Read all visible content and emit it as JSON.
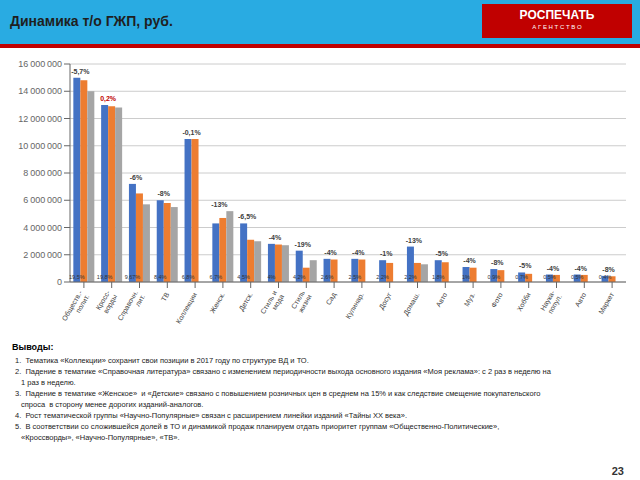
{
  "chart_data": {
    "type": "bar",
    "title": "Динамика т/о ГЖП, руб.",
    "categories": [
      "Обществ.-\nполит.",
      "Кросс-\nворды",
      "Справочн.\nлит.",
      "ТВ",
      "Коллекции",
      "Женск.",
      "Детск.",
      "Стиль и\nмода",
      "Стиль\nжизни",
      "Сад",
      "Кулинар.",
      "Досуг",
      "Домаш.",
      "Авто",
      "Муз.",
      "Фото",
      "Хобби",
      "Наука-\nпопул.",
      "Авто",
      "Маркет"
    ],
    "series": [
      {
        "color": "#4472C4",
        "values": [
          15000000,
          13000000,
          7200000,
          6000000,
          10500000,
          4300000,
          4300000,
          2800000,
          2300000,
          1700000,
          1700000,
          1600000,
          2600000,
          1600000,
          1100000,
          950000,
          700000,
          550000,
          550000,
          450000
        ]
      },
      {
        "color": "#ED7D31",
        "values": [
          14800000,
          12900000,
          6500000,
          5800000,
          10490000,
          4700000,
          3100000,
          2750000,
          1050000,
          1650000,
          1650000,
          1400000,
          1400000,
          1450000,
          1050000,
          870000,
          600000,
          520000,
          520000,
          420000
        ]
      },
      {
        "color": "#A5A5A5",
        "values": [
          14000000,
          12800000,
          5700000,
          5500000,
          null,
          5200000,
          3000000,
          2700000,
          1600000,
          null,
          null,
          null,
          1300000,
          null,
          null,
          null,
          null,
          null,
          null,
          null
        ]
      }
    ],
    "ylim": [
      0,
      16000000
    ],
    "yticks": [
      0,
      {
        "value": 2000000,
        "label": "2 000 000"
      },
      {
        "value": 4000000,
        "label": "4 000 000"
      },
      {
        "value": 6000000,
        "label": "6 000 000"
      },
      {
        "value": 8000000,
        "label": "8 000 000"
      },
      {
        "value": 10000000,
        "label": "10 000 000"
      },
      {
        "value": 12000000,
        "label": "12 000 000"
      },
      {
        "value": 14000000,
        "label": "14 000 000"
      },
      {
        "value": 16000000,
        "label": "16 000 000"
      }
    ],
    "grid": true,
    "annotations": {
      "logo": "РОСПЕЧАТЬ",
      "logo_subtitle": "А Г Е Н Т С Т В О",
      "pct_labels": [
        "-5,7%",
        "0,2%",
        "-6%",
        "-8%",
        "-0,1%",
        "-13%",
        "-6,5%",
        "-4%",
        "-19%",
        "-4%",
        "-4%",
        "-1%",
        "-13%",
        "-5%",
        "-4%",
        "-8%",
        "-5%",
        "-4%",
        "-4%",
        "-8%"
      ],
      "pct_label_colors": [
        "#404040",
        "#c00000",
        "#404040",
        "#404040",
        "#404040",
        "#404040",
        "#404040",
        "#404040",
        "#404040",
        "#404040",
        "#404040",
        "#404040",
        "#404040",
        "#404040",
        "#404040",
        "#404040",
        "#404040",
        "#404040",
        "#404040",
        "#404040"
      ],
      "share_labels": [
        "19,5%",
        "19,8%",
        "9,67%",
        "8,4%",
        "6,8%",
        "6,7%",
        "4,5%",
        "4%",
        "4,2%",
        "2,6%",
        "2,5%",
        "2,2%",
        "2,2%",
        "1,8%",
        "1%",
        "0,9%",
        "0,7%",
        "0,5%",
        "0,5%",
        "0,4%"
      ],
      "notes_title": "Выводы:",
      "notes": [
        "1.  Тематика «Коллекции» сохранит свои позиции в 2017 году по структуре ВД и ТО.",
        "2.  Падение в тематике «Справочная литература» связано с изменением периодичности выхода основного издания «Моя реклама»: с 2 раз в неделю на\n1 раз в неделю.",
        "3.  Падение в тематике «Женское»  и «Детские» связано с повышением розничных цен в среднем на 15% и как следствие смещение покупательского\nспроса  в сторону менее дорогих изданий-аналогов.",
        "4.  Рост тематической группы «Научно-Популярные» связан с расширением линейки изданий «Тайны ХХ века».",
        "5.  В соответствии со сложившейся долей в ТО и динамикой продаж планируем отдать приоритет группам «Общественно-Политические»,\n«Кроссворды», «Научно-Популярные», «ТВ»."
      ],
      "page_number": "23"
    }
  }
}
